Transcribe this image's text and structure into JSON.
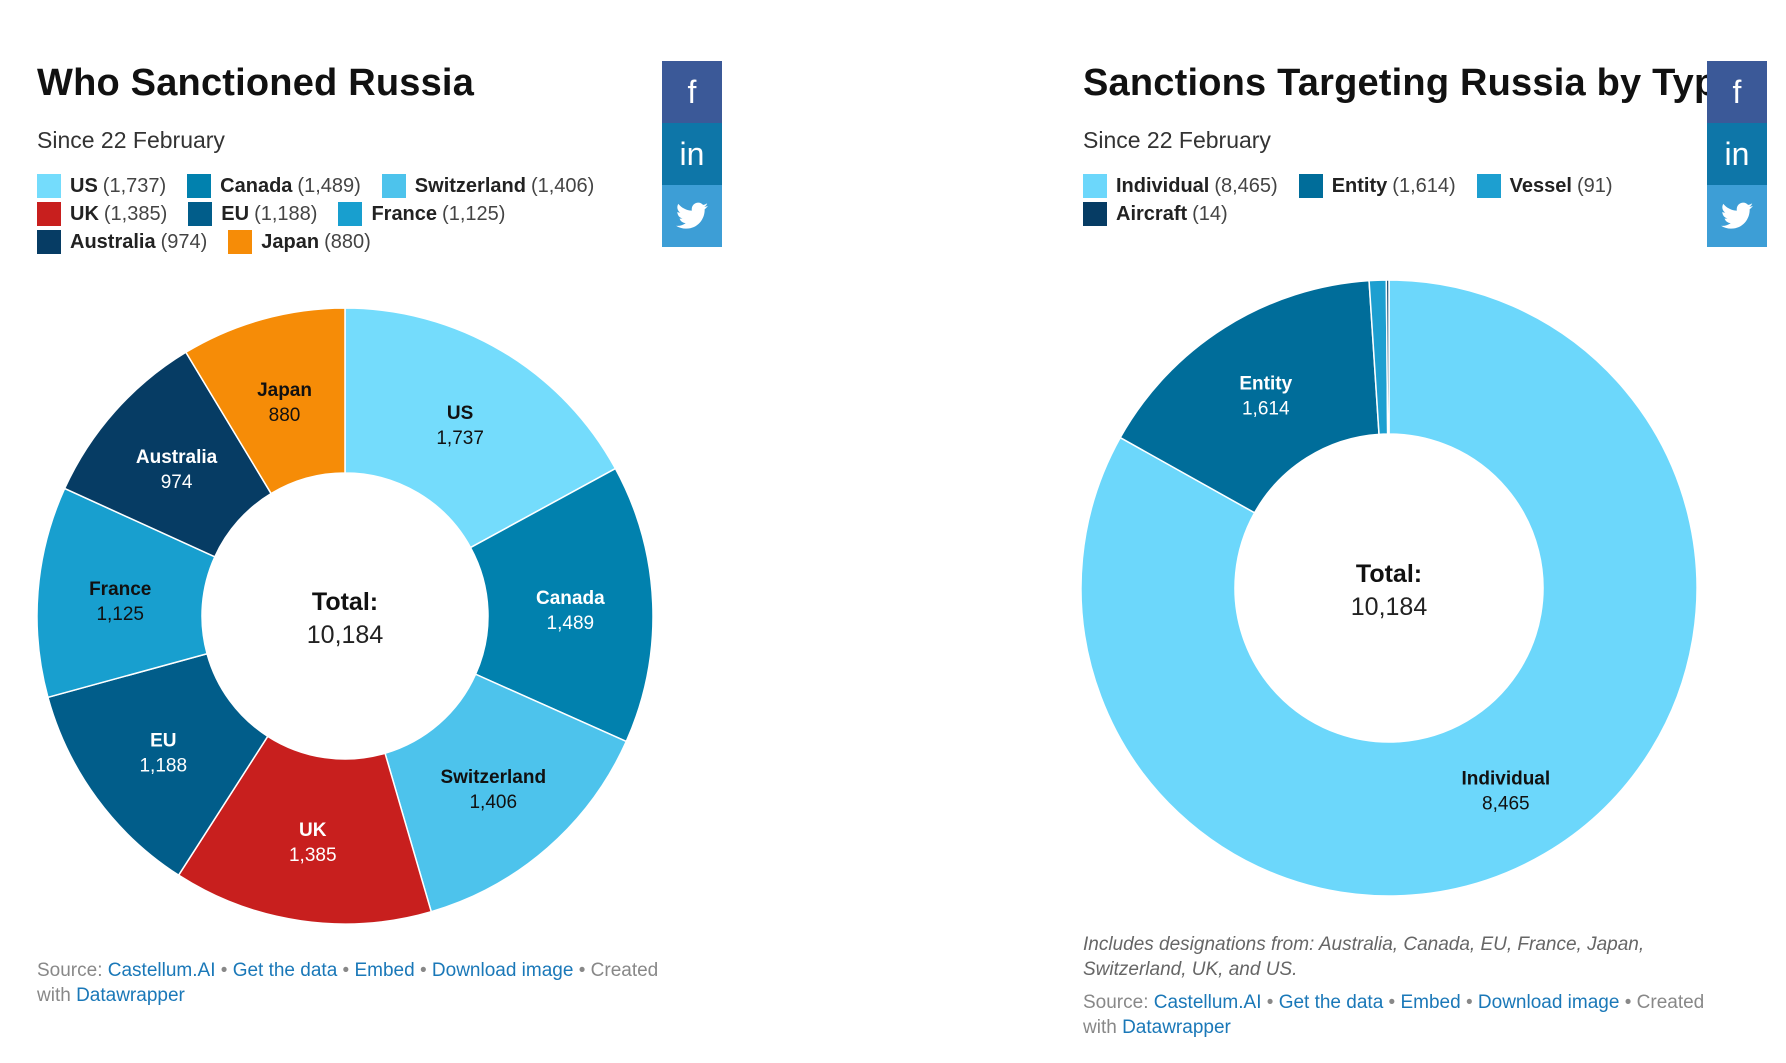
{
  "left": {
    "title": "Who Sanctioned Russia",
    "subtitle": "Since 22 February",
    "center_label": "Total:",
    "center_value": "10,184",
    "legend": [
      [
        {
          "name": "US",
          "count": "(1,737)",
          "color": "#74dcfc"
        },
        {
          "name": "Canada",
          "count": "(1,489)",
          "color": "#0181ae"
        },
        {
          "name": "Switzerland",
          "count": "(1,406)",
          "color": "#4dc3ec"
        }
      ],
      [
        {
          "name": "UK",
          "count": "(1,385)",
          "color": "#c81f1e"
        },
        {
          "name": "EU",
          "count": "(1,188)",
          "color": "#015d8a"
        },
        {
          "name": "France",
          "count": "(1,125)",
          "color": "#189fcf"
        }
      ],
      [
        {
          "name": "Australia",
          "count": "(974)",
          "color": "#063c64"
        },
        {
          "name": "Japan",
          "count": "(880)",
          "color": "#f68c07"
        }
      ]
    ],
    "footer": {
      "source_prefix": "Source:",
      "source_link": "Castellum.AI",
      "get_data": "Get the data",
      "embed": "Embed",
      "download": "Download image",
      "created": "Created",
      "with": "with",
      "datawrapper": "Datawrapper"
    }
  },
  "right": {
    "title": "Sanctions Targeting Russia by Type",
    "subtitle": "Since 22 February",
    "center_label": "Total:",
    "center_value": "10,184",
    "legend": [
      [
        {
          "name": "Individual",
          "count": "(8,465)",
          "color": "#6cd7fb"
        },
        {
          "name": "Entity",
          "count": "(1,614)",
          "color": "#006d9a"
        },
        {
          "name": "Vessel",
          "count": "(91)",
          "color": "#1d9fd0"
        }
      ],
      [
        {
          "name": "Aircraft",
          "count": "(14)",
          "color": "#063c64"
        }
      ]
    ],
    "note": "Includes designations from: Australia, Canada, EU, France, Japan, Switzerland, UK, and US.",
    "footer": {
      "source_prefix": "Source:",
      "source_link": "Castellum.AI",
      "get_data": "Get the data",
      "embed": "Embed",
      "download": "Download image",
      "created": "Created",
      "with": "with",
      "datawrapper": "Datawrapper"
    }
  },
  "social": {
    "facebook_icon": "f",
    "linkedin_icon": "in",
    "twitter_icon": "twitter-bird"
  },
  "chart_data": [
    {
      "type": "pie",
      "title": "Who Sanctioned Russia",
      "subtitle": "Since 22 February",
      "donut": true,
      "center_text": "Total: 10,184",
      "categories": [
        "US",
        "Canada",
        "Switzerland",
        "UK",
        "EU",
        "France",
        "Australia",
        "Japan"
      ],
      "values": [
        1737,
        1489,
        1406,
        1385,
        1188,
        1125,
        974,
        880
      ],
      "labels": [
        "1,737",
        "1,489",
        "1,406",
        "1,385",
        "1,188",
        "1,125",
        "974",
        "880"
      ],
      "colors": [
        "#74dcfc",
        "#0181ae",
        "#4dc3ec",
        "#c81f1e",
        "#015d8a",
        "#189fcf",
        "#063c64",
        "#f68c07"
      ],
      "label_colors": [
        "#111111",
        "#ffffff",
        "#111111",
        "#ffffff",
        "#ffffff",
        "#111111",
        "#ffffff",
        "#111111"
      ],
      "show_slice_labels": [
        true,
        true,
        true,
        true,
        true,
        true,
        true,
        true
      ],
      "legend_position": "top"
    },
    {
      "type": "pie",
      "title": "Sanctions Targeting Russia by Type",
      "subtitle": "Since 22 February",
      "donut": true,
      "center_text": "Total: 10,184",
      "categories": [
        "Individual",
        "Entity",
        "Vessel",
        "Aircraft"
      ],
      "values": [
        8465,
        1614,
        91,
        14
      ],
      "labels": [
        "8,465",
        "1,614",
        "91",
        "14"
      ],
      "colors": [
        "#6cd7fb",
        "#006d9a",
        "#1d9fd0",
        "#063c64"
      ],
      "label_colors": [
        "#111111",
        "#ffffff",
        "#111111",
        "#ffffff"
      ],
      "show_slice_labels": [
        true,
        true,
        false,
        false
      ],
      "legend_position": "top"
    }
  ]
}
